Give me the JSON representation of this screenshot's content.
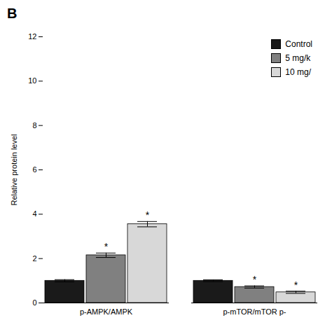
{
  "chart_data": {
    "type": "bar",
    "title": "B",
    "ylabel": "Relative protein level",
    "categories": [
      "p-AMPK/AMPK",
      "p-mTOR/mTOR p-"
    ],
    "series": [
      {
        "name": "Control",
        "color": "#1a1a1a",
        "values": [
          1.0,
          1.0
        ],
        "errors": [
          0.05,
          0.04
        ],
        "significance": [
          null,
          null
        ]
      },
      {
        "name": "5 mg/k",
        "color": "#808080",
        "values": [
          2.15,
          0.72
        ],
        "errors": [
          0.1,
          0.05
        ],
        "significance": [
          "*",
          "*"
        ]
      },
      {
        "name": "10 mg/",
        "color": "#d8d8d8",
        "values": [
          3.55,
          0.48
        ],
        "errors": [
          0.12,
          0.05
        ],
        "significance": [
          "*",
          "*"
        ]
      }
    ],
    "ylim": [
      0,
      12
    ],
    "yticks": [
      0,
      2,
      4,
      6,
      8,
      10,
      12
    ],
    "grid": false,
    "legend": "upper right"
  }
}
